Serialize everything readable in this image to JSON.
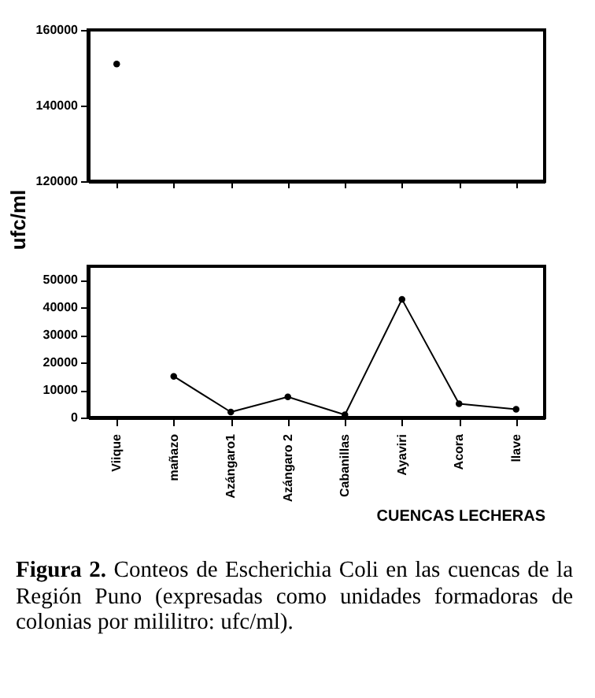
{
  "chart_data": [
    {
      "type": "line",
      "categories": [
        null,
        null,
        null,
        null,
        null,
        null,
        null,
        null
      ],
      "ylabel": "ufc/ml",
      "series": [
        {
          "color": "#000000",
          "values": [
            151000,
            null,
            null,
            null,
            null,
            null,
            null,
            null
          ]
        }
      ],
      "ylim": [
        120000,
        160000
      ],
      "yticks": [
        120000,
        140000,
        160000
      ],
      "tick_labels": "y",
      "marker": "circle"
    },
    {
      "type": "line",
      "categories": [
        "Viique",
        "mañazo",
        "Azángaro1",
        "Azángaro 2",
        "Cabanillas",
        "Ayaviri",
        "Acora",
        "llave"
      ],
      "xlabel": "CUENCAS LECHERAS",
      "series": [
        {
          "color": "#000000",
          "values": [
            null,
            15000,
            2000,
            7500,
            1000,
            43000,
            5000,
            3000
          ]
        }
      ],
      "ylim": [
        0,
        55000
      ],
      "yticks": [
        0,
        10000,
        20000,
        30000,
        40000,
        50000
      ],
      "marker": "circle",
      "annotations": [
        "Figura 2.",
        "Conteos de Escherichia Coli  en las cuencas de la Región Puno (expresadas como unidades formadoras de colonias por mililitro: ufc/ml)."
      ]
    }
  ]
}
